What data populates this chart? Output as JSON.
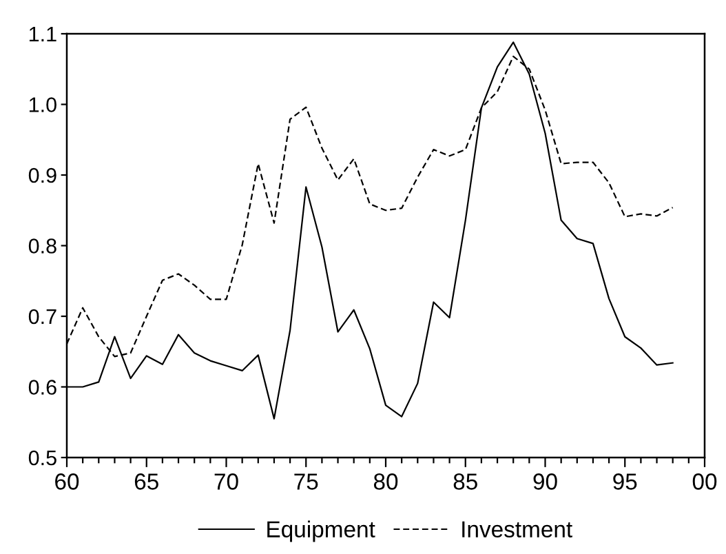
{
  "chart_data": {
    "type": "line",
    "x": [
      1960,
      1961,
      1962,
      1963,
      1964,
      1965,
      1966,
      1967,
      1968,
      1969,
      1970,
      1971,
      1972,
      1973,
      1974,
      1975,
      1976,
      1977,
      1978,
      1979,
      1980,
      1981,
      1982,
      1983,
      1984,
      1985,
      1986,
      1987,
      1988,
      1989,
      1990,
      1991,
      1992,
      1993,
      1994,
      1995,
      1996,
      1997,
      1998
    ],
    "series": [
      {
        "name": "Equipment",
        "color": "#000000",
        "line_style": "solid",
        "values": [
          0.6,
          0.6,
          0.607,
          0.671,
          0.612,
          0.644,
          0.632,
          0.674,
          0.648,
          0.637,
          0.63,
          0.623,
          0.645,
          0.555,
          0.68,
          0.883,
          0.798,
          0.678,
          0.709,
          0.654,
          0.574,
          0.558,
          0.605,
          0.72,
          0.698,
          0.836,
          0.995,
          1.053,
          1.088,
          1.043,
          0.959,
          0.836,
          0.81,
          0.803,
          0.725,
          0.671,
          0.655,
          0.631,
          0.634
        ]
      },
      {
        "name": "Investment",
        "color": "#000000",
        "line_style": "dashed",
        "values": [
          0.661,
          0.712,
          0.671,
          0.643,
          0.648,
          0.7,
          0.751,
          0.76,
          0.744,
          0.724,
          0.724,
          0.801,
          0.916,
          0.832,
          0.979,
          0.996,
          0.938,
          0.893,
          0.923,
          0.859,
          0.85,
          0.853,
          0.897,
          0.936,
          0.927,
          0.936,
          0.995,
          1.018,
          1.068,
          1.05,
          0.992,
          0.916,
          0.918,
          0.918,
          0.889,
          0.841,
          0.845,
          0.842,
          0.854
        ]
      }
    ],
    "xlim": [
      1960,
      2000
    ],
    "xticks": [
      {
        "value": 1960,
        "label": "60"
      },
      {
        "value": 1961,
        "label": null
      },
      {
        "value": 1962,
        "label": null
      },
      {
        "value": 1963,
        "label": null
      },
      {
        "value": 1964,
        "label": null
      },
      {
        "value": 1965,
        "label": "65"
      },
      {
        "value": 1966,
        "label": null
      },
      {
        "value": 1967,
        "label": null
      },
      {
        "value": 1968,
        "label": null
      },
      {
        "value": 1969,
        "label": null
      },
      {
        "value": 1970,
        "label": "70"
      },
      {
        "value": 1971,
        "label": null
      },
      {
        "value": 1972,
        "label": null
      },
      {
        "value": 1973,
        "label": null
      },
      {
        "value": 1974,
        "label": null
      },
      {
        "value": 1975,
        "label": "75"
      },
      {
        "value": 1976,
        "label": null
      },
      {
        "value": 1977,
        "label": null
      },
      {
        "value": 1978,
        "label": null
      },
      {
        "value": 1979,
        "label": null
      },
      {
        "value": 1980,
        "label": "80"
      },
      {
        "value": 1981,
        "label": null
      },
      {
        "value": 1982,
        "label": null
      },
      {
        "value": 1983,
        "label": null
      },
      {
        "value": 1984,
        "label": null
      },
      {
        "value": 1985,
        "label": "85"
      },
      {
        "value": 1986,
        "label": null
      },
      {
        "value": 1987,
        "label": null
      },
      {
        "value": 1988,
        "label": null
      },
      {
        "value": 1989,
        "label": null
      },
      {
        "value": 1990,
        "label": "90"
      },
      {
        "value": 1991,
        "label": null
      },
      {
        "value": 1992,
        "label": null
      },
      {
        "value": 1993,
        "label": null
      },
      {
        "value": 1994,
        "label": null
      },
      {
        "value": 1995,
        "label": "95"
      },
      {
        "value": 1996,
        "label": null
      },
      {
        "value": 1997,
        "label": null
      },
      {
        "value": 1998,
        "label": null
      },
      {
        "value": 1999,
        "label": null
      },
      {
        "value": 2000,
        "label": "00"
      }
    ],
    "ylim": [
      0.5,
      1.1
    ],
    "yticks": [
      {
        "value": 0.5,
        "label": "0.5"
      },
      {
        "value": 0.6,
        "label": "0.6"
      },
      {
        "value": 0.7,
        "label": "0.7"
      },
      {
        "value": 0.8,
        "label": "0.8"
      },
      {
        "value": 0.9,
        "label": "0.9"
      },
      {
        "value": 1.0,
        "label": "1.0"
      },
      {
        "value": 1.1,
        "label": "1.1"
      }
    ],
    "legend": "bottom"
  }
}
